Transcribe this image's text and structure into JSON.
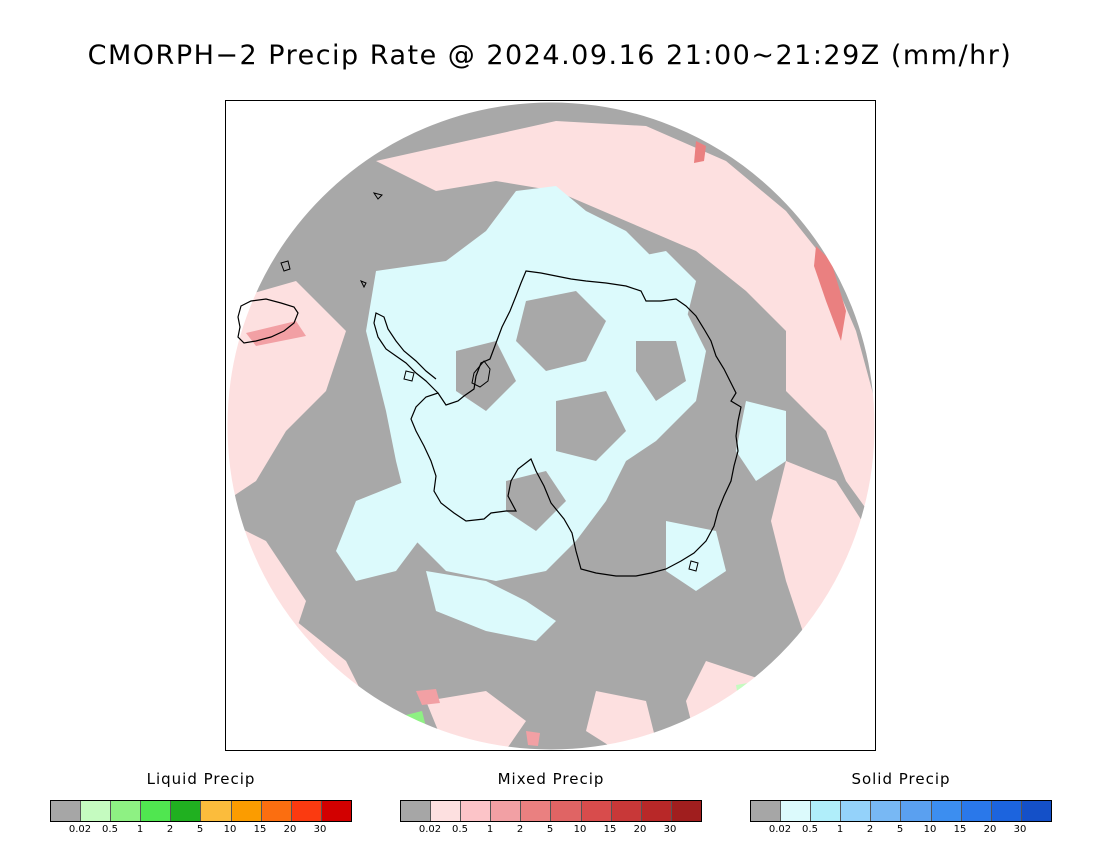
{
  "title": "CMORPH−2 Precip Rate @ 2024.09.16 21:00~21:29Z (mm/hr)",
  "map": {
    "projection": "south-polar-stereographic",
    "region": "Antarctica",
    "ocean_no_data_color": "#a8a8a8",
    "mixed_light_color": "#fde0e0",
    "solid_light_color": "#dcfafc",
    "coastline_color": "#000000"
  },
  "legends": [
    {
      "id": "liquid",
      "title": "Liquid Precip",
      "colors": [
        "#a6a6a6",
        "#c5fbc0",
        "#8ef183",
        "#50e650",
        "#20b020",
        "#fbbc3c",
        "#fb9c00",
        "#fb6e10",
        "#fb3a10",
        "#d20000"
      ],
      "ticks": [
        "0.02",
        "0.5",
        "1",
        "2",
        "5",
        "10",
        "15",
        "20",
        "30"
      ]
    },
    {
      "id": "mixed",
      "title": "Mixed Precip",
      "colors": [
        "#a6a6a6",
        "#fde0e0",
        "#fcc4c8",
        "#f2a0a4",
        "#ea8080",
        "#e06464",
        "#d84c4c",
        "#c83838",
        "#b82828",
        "#a01e1e"
      ],
      "ticks": [
        "0.02",
        "0.5",
        "1",
        "2",
        "5",
        "10",
        "15",
        "20",
        "30"
      ]
    },
    {
      "id": "solid",
      "title": "Solid Precip",
      "colors": [
        "#a6a6a6",
        "#dcfafc",
        "#b0eefa",
        "#94d2fa",
        "#78b8f4",
        "#5aa0f0",
        "#3c8ef0",
        "#2a78ea",
        "#1c64de",
        "#1450c8"
      ],
      "ticks": [
        "0.02",
        "0.5",
        "1",
        "2",
        "5",
        "10",
        "15",
        "20",
        "30"
      ]
    }
  ]
}
